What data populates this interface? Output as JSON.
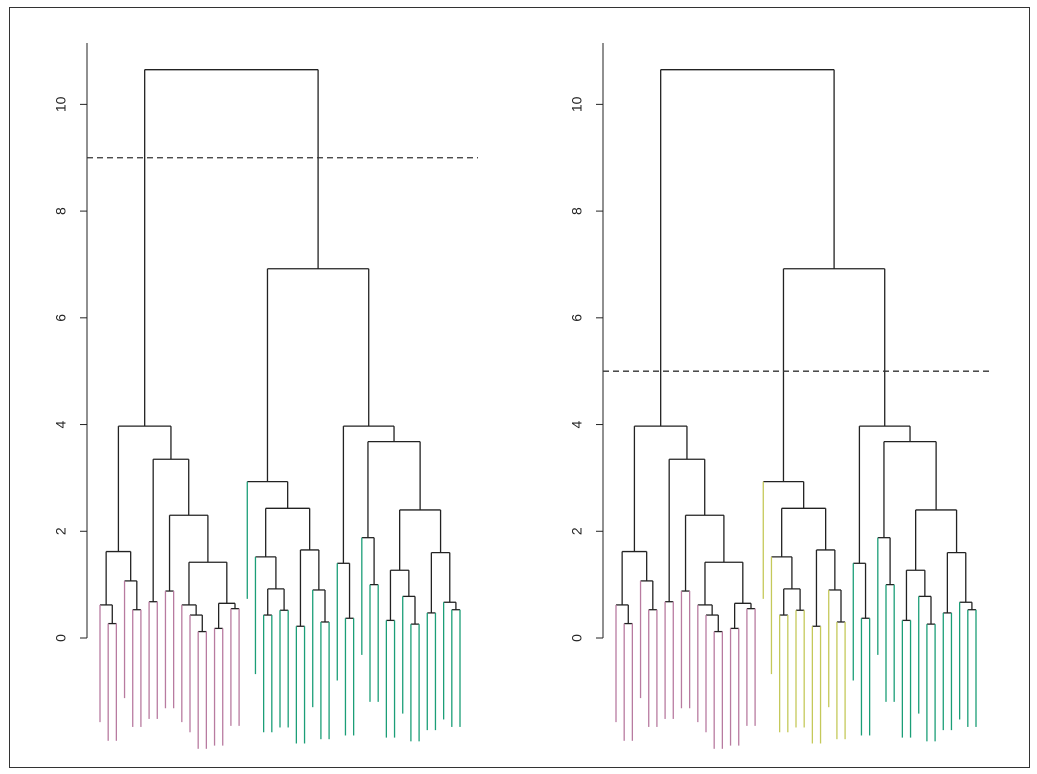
{
  "chart_data": [
    {
      "type": "dendrogram",
      "ylim": [
        0,
        11.15
      ],
      "yticks": [
        0,
        2,
        4,
        6,
        8,
        10
      ],
      "cut": 9,
      "colors": [
        "#b87ba0",
        "#1b9e77"
      ],
      "tree": [
        10.65,
        [
          3.97,
          [
            1.62,
            [
              0.62,
              null,
              [
                0.27,
                null,
                null
              ]
            ],
            [
              1.07,
              null,
              [
                0.53,
                null,
                null
              ]
            ]
          ],
          [
            3.35,
            [
              0.68,
              null,
              null
            ],
            [
              2.3,
              [
                0.88,
                null,
                null
              ],
              [
                1.42,
                [
                  0.62,
                  null,
                  [
                    0.43,
                    null,
                    [
                      0.12,
                      null,
                      null
                    ]
                  ]
                ],
                [
                  0.65,
                  [
                    0.18,
                    null,
                    null
                  ],
                  [
                    0.55,
                    null,
                    null
                  ]
                ]
              ]
            ]
          ]
        ],
        [
          6.92,
          [
            2.93,
            null,
            [
              2.43,
              [
                1.52,
                null,
                [
                  0.92,
                  [
                    0.43,
                    null,
                    null
                  ],
                  [
                    0.52,
                    null,
                    null
                  ]
                ]
              ],
              [
                1.65,
                [
                  0.22,
                  null,
                  null
                ],
                [
                  0.9,
                  null,
                  [
                    0.3,
                    null,
                    null
                  ]
                ]
              ]
            ]
          ],
          [
            3.97,
            [
              1.4,
              null,
              [
                0.37,
                null,
                null
              ]
            ],
            [
              3.68,
              [
                1.88,
                null,
                [
                  1.0,
                  null,
                  null
                ]
              ],
              [
                2.4,
                [
                  1.27,
                  [
                    0.33,
                    null,
                    null
                  ],
                  [
                    0.78,
                    null,
                    [
                      0.26,
                      null,
                      null
                    ]
                  ]
                ],
                [
                  1.6,
                  [
                    0.47,
                    null,
                    null
                  ],
                  [
                    0.67,
                    null,
                    [
                      0.53,
                      null,
                      null
                    ]
                  ]
                ]
              ]
            ]
          ]
        ]
      ]
    },
    {
      "type": "dendrogram",
      "ylim": [
        0,
        11.15
      ],
      "yticks": [
        0,
        2,
        4,
        6,
        8,
        10
      ],
      "cut": 5,
      "colors": [
        "#b87ba0",
        "#c5c95a",
        "#1b9e77"
      ],
      "tree": [
        10.65,
        [
          3.97,
          [
            1.62,
            [
              0.62,
              null,
              [
                0.27,
                null,
                null
              ]
            ],
            [
              1.07,
              null,
              [
                0.53,
                null,
                null
              ]
            ]
          ],
          [
            3.35,
            [
              0.68,
              null,
              null
            ],
            [
              2.3,
              [
                0.88,
                null,
                null
              ],
              [
                1.42,
                [
                  0.62,
                  null,
                  [
                    0.43,
                    null,
                    [
                      0.12,
                      null,
                      null
                    ]
                  ]
                ],
                [
                  0.65,
                  [
                    0.18,
                    null,
                    null
                  ],
                  [
                    0.55,
                    null,
                    null
                  ]
                ]
              ]
            ]
          ]
        ],
        [
          6.92,
          [
            2.93,
            null,
            [
              2.43,
              [
                1.52,
                null,
                [
                  0.92,
                  [
                    0.43,
                    null,
                    null
                  ],
                  [
                    0.52,
                    null,
                    null
                  ]
                ]
              ],
              [
                1.65,
                [
                  0.22,
                  null,
                  null
                ],
                [
                  0.9,
                  null,
                  [
                    0.3,
                    null,
                    null
                  ]
                ]
              ]
            ]
          ],
          [
            3.97,
            [
              1.4,
              null,
              [
                0.37,
                null,
                null
              ]
            ],
            [
              3.68,
              [
                1.88,
                null,
                [
                  1.0,
                  null,
                  null
                ]
              ],
              [
                2.4,
                [
                  1.27,
                  [
                    0.33,
                    null,
                    null
                  ],
                  [
                    0.78,
                    null,
                    [
                      0.26,
                      null,
                      null
                    ]
                  ]
                ],
                [
                  1.6,
                  [
                    0.47,
                    null,
                    null
                  ],
                  [
                    0.67,
                    null,
                    [
                      0.53,
                      null,
                      null
                    ]
                  ]
                ]
              ]
            ]
          ]
        ]
      ]
    }
  ]
}
